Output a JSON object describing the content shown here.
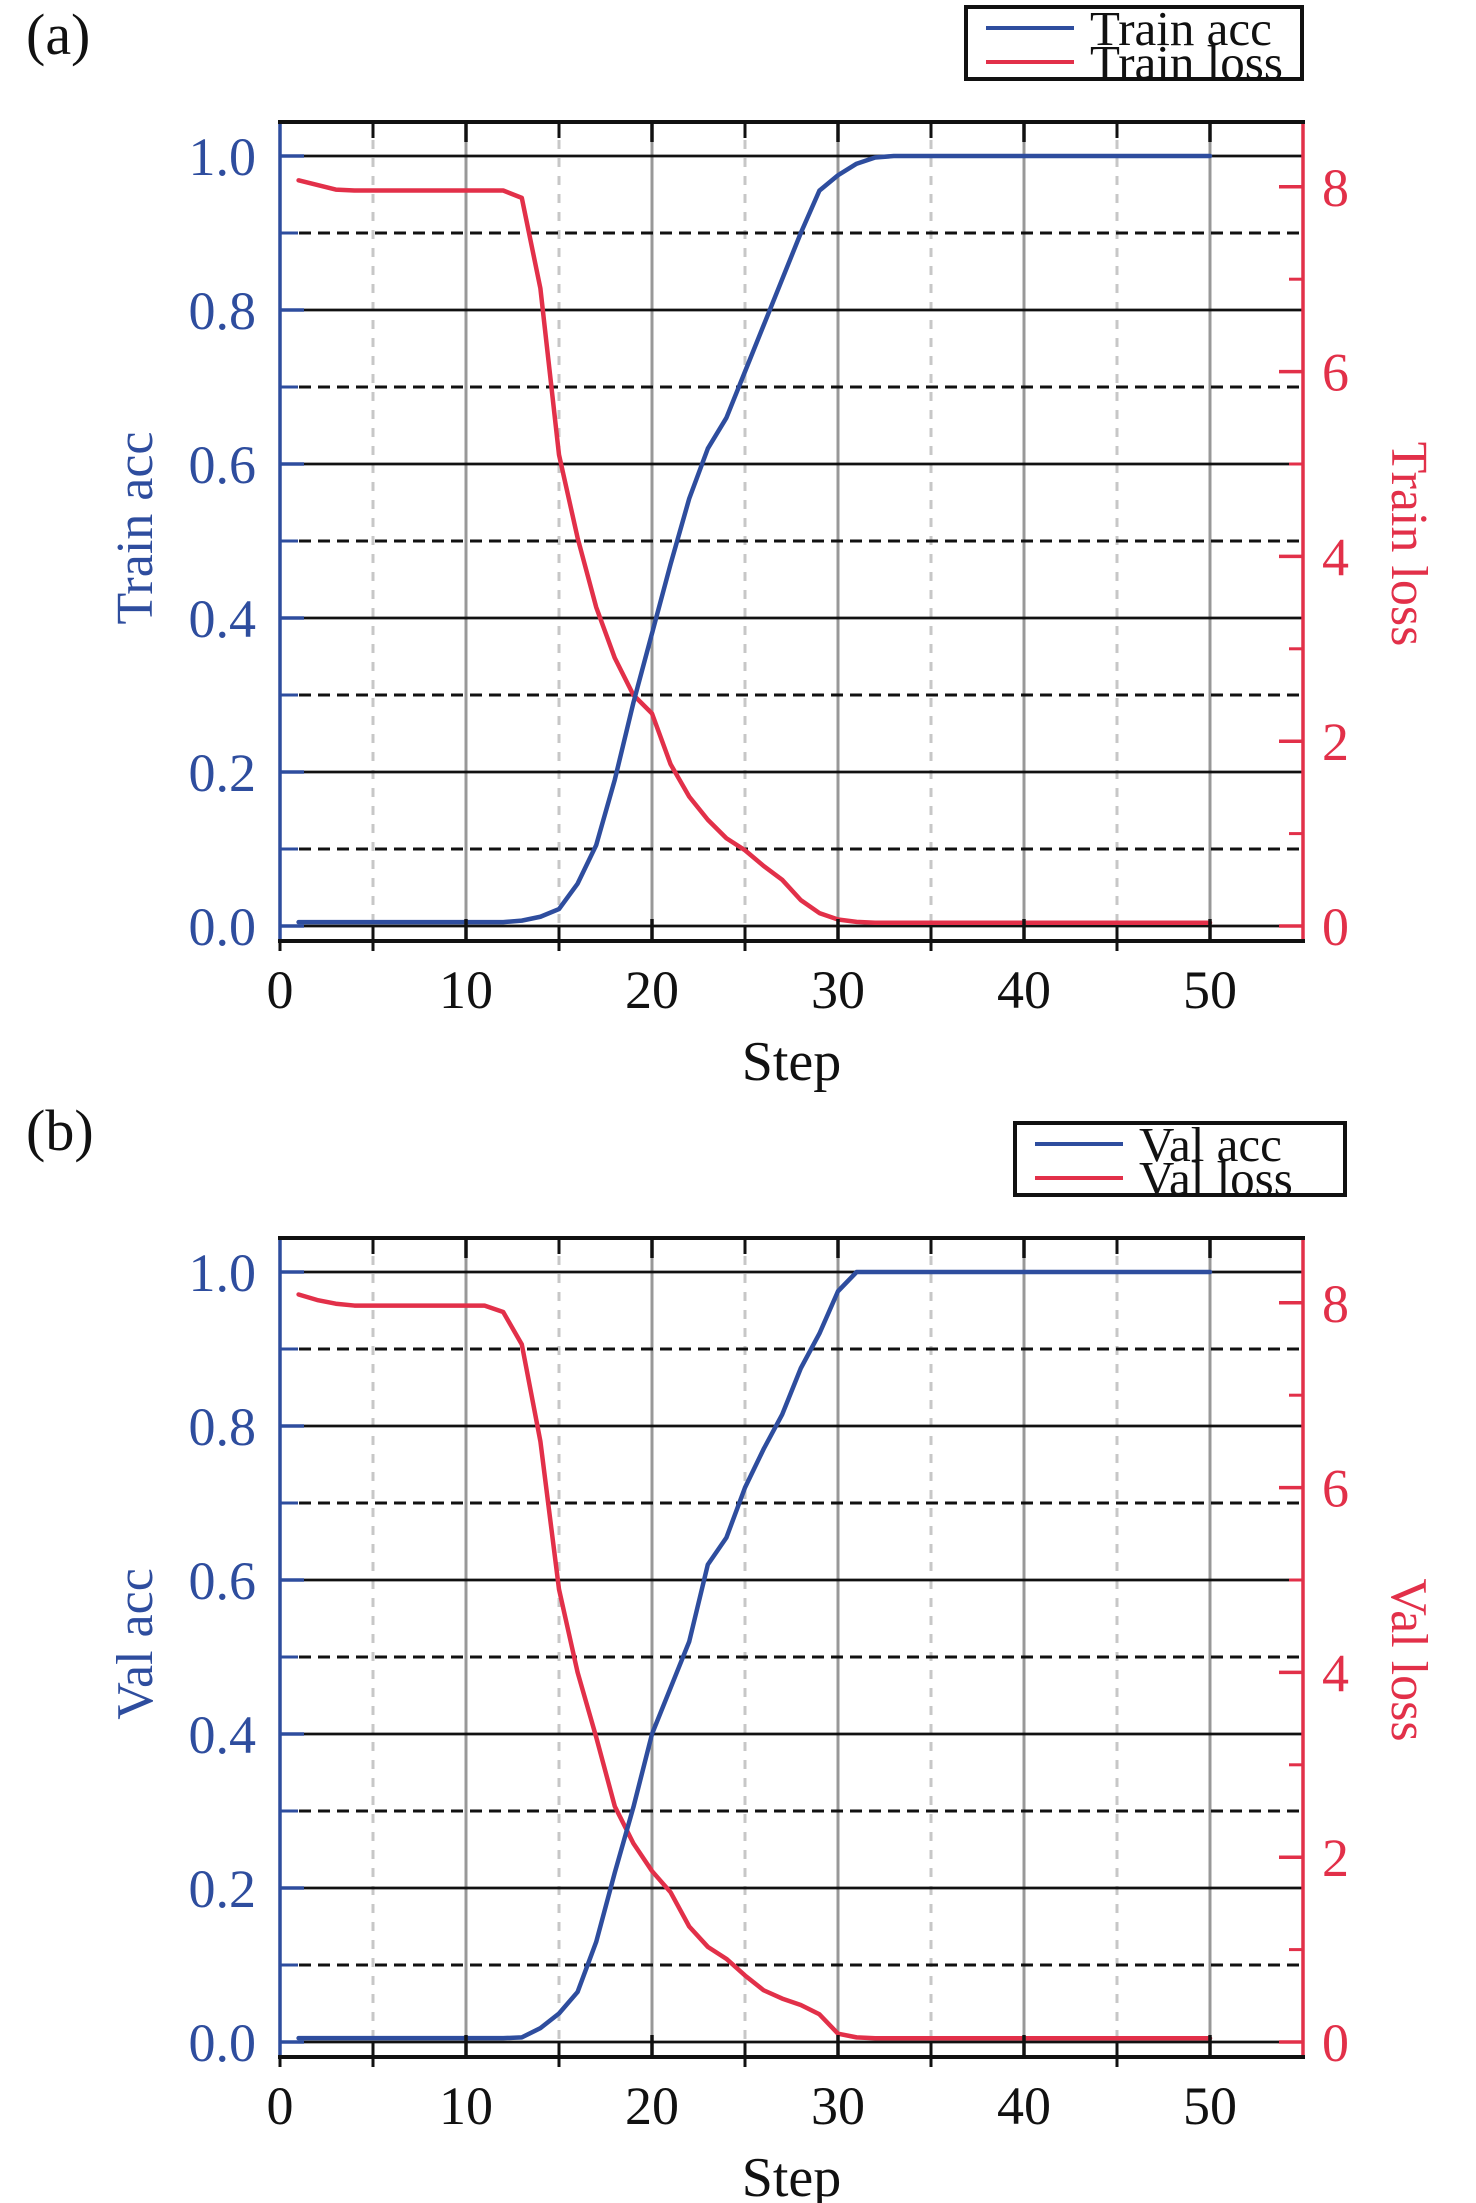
{
  "figure": {
    "background": "#ffffff"
  },
  "colors": {
    "acc_blue": "#2E4D9E",
    "loss_red": "#E23049",
    "grid_black": "#111111",
    "grid_gray_solid": "#989898",
    "grid_gray_dashed": "#c7c7c7",
    "text_black": "#111111"
  },
  "chart_data": [
    {
      "type": "line",
      "tag": "(a)",
      "xlabel": "Step",
      "legend": [
        {
          "label": "Train acc",
          "color": "#2E4D9E"
        },
        {
          "label": "Train loss",
          "color": "#E23049"
        }
      ],
      "x_axis": {
        "title": "Step",
        "tick_labels": [
          "0",
          "10",
          "20",
          "30",
          "40",
          "50"
        ],
        "tick_values": [
          0,
          10,
          20,
          30,
          40,
          50
        ],
        "minor_values": [
          5,
          15,
          25,
          35,
          45
        ],
        "range": [
          0,
          55
        ]
      },
      "left_axis": {
        "title": "Train acc",
        "color": "#2E4D9E",
        "tick_labels": [
          "0.0",
          "0.2",
          "0.4",
          "0.6",
          "0.8",
          "1.0"
        ],
        "tick_values": [
          0,
          0.2,
          0.4,
          0.6,
          0.8,
          1.0
        ],
        "minor_values": [
          0.1,
          0.3,
          0.5,
          0.7,
          0.9
        ],
        "range": [
          -0.02,
          1.045
        ]
      },
      "right_axis": {
        "title": "Train loss",
        "color": "#E23049",
        "tick_labels": [
          "0",
          "2",
          "4",
          "6",
          "8"
        ],
        "tick_values": [
          0,
          2,
          4,
          6,
          8
        ],
        "minor_values": [
          1,
          3,
          5,
          7
        ],
        "range": [
          -0.16,
          8.7
        ]
      },
      "series": [
        {
          "name": "Train loss",
          "axis": "right",
          "color": "#E23049",
          "x": [
            1,
            2,
            3,
            4,
            5,
            6,
            7,
            8,
            9,
            10,
            11,
            12,
            13,
            14,
            15,
            16,
            17,
            18,
            19,
            20,
            21,
            22,
            23,
            24,
            25,
            26,
            27,
            28,
            29,
            30,
            31,
            32,
            33,
            34,
            35,
            36,
            37,
            38,
            39,
            40,
            41,
            42,
            43,
            44,
            45,
            46,
            47,
            48,
            49,
            50
          ],
          "y": [
            8.07,
            8.02,
            7.97,
            7.96,
            7.96,
            7.96,
            7.96,
            7.96,
            7.96,
            7.96,
            7.96,
            7.96,
            7.88,
            6.9,
            5.1,
            4.2,
            3.45,
            2.9,
            2.5,
            2.3,
            1.75,
            1.4,
            1.15,
            0.95,
            0.82,
            0.65,
            0.5,
            0.28,
            0.14,
            0.07,
            0.045,
            0.035,
            0.035,
            0.035,
            0.035,
            0.035,
            0.035,
            0.035,
            0.035,
            0.035,
            0.035,
            0.035,
            0.035,
            0.035,
            0.035,
            0.035,
            0.035,
            0.035,
            0.035,
            0.035
          ]
        },
        {
          "name": "Train acc",
          "axis": "left",
          "color": "#2E4D9E",
          "x": [
            1,
            2,
            3,
            4,
            5,
            6,
            7,
            8,
            9,
            10,
            11,
            12,
            13,
            14,
            15,
            16,
            17,
            18,
            19,
            20,
            21,
            22,
            23,
            24,
            25,
            26,
            27,
            28,
            29,
            30,
            31,
            32,
            33,
            34,
            35,
            36,
            37,
            38,
            39,
            40,
            41,
            42,
            43,
            44,
            45,
            46,
            47,
            48,
            49,
            50
          ],
          "y": [
            0.005,
            0.005,
            0.005,
            0.005,
            0.005,
            0.005,
            0.005,
            0.005,
            0.005,
            0.005,
            0.005,
            0.005,
            0.007,
            0.012,
            0.022,
            0.055,
            0.105,
            0.19,
            0.29,
            0.38,
            0.47,
            0.555,
            0.62,
            0.66,
            0.72,
            0.78,
            0.84,
            0.9,
            0.955,
            0.975,
            0.99,
            0.998,
            1.0,
            1.0,
            1.0,
            1.0,
            1.0,
            1.0,
            1.0,
            1.0,
            1.0,
            1.0,
            1.0,
            1.0,
            1.0,
            1.0,
            1.0,
            1.0,
            1.0,
            1.0
          ]
        }
      ]
    },
    {
      "type": "line",
      "tag": "(b)",
      "xlabel": "Step",
      "legend": [
        {
          "label": "Val acc",
          "color": "#2E4D9E"
        },
        {
          "label": "Val loss",
          "color": "#E23049"
        }
      ],
      "x_axis": {
        "title": "Step",
        "tick_labels": [
          "0",
          "10",
          "20",
          "30",
          "40",
          "50"
        ],
        "tick_values": [
          0,
          10,
          20,
          30,
          40,
          50
        ],
        "minor_values": [
          5,
          15,
          25,
          35,
          45
        ],
        "range": [
          0,
          55
        ]
      },
      "left_axis": {
        "title": "Val acc",
        "color": "#2E4D9E",
        "tick_labels": [
          "0.0",
          "0.2",
          "0.4",
          "0.6",
          "0.8",
          "1.0"
        ],
        "tick_values": [
          0,
          0.2,
          0.4,
          0.6,
          0.8,
          1.0
        ],
        "minor_values": [
          0.1,
          0.3,
          0.5,
          0.7,
          0.9
        ],
        "range": [
          -0.02,
          1.045
        ]
      },
      "right_axis": {
        "title": "Val loss",
        "color": "#E23049",
        "tick_labels": [
          "0",
          "2",
          "4",
          "6",
          "8"
        ],
        "tick_values": [
          0,
          2,
          4,
          6,
          8
        ],
        "minor_values": [
          1,
          3,
          5,
          7
        ],
        "range": [
          -0.16,
          8.7
        ]
      },
      "series": [
        {
          "name": "Val loss",
          "axis": "right",
          "color": "#E23049",
          "x": [
            1,
            2,
            3,
            4,
            5,
            6,
            7,
            8,
            9,
            10,
            11,
            12,
            13,
            14,
            15,
            16,
            17,
            18,
            19,
            20,
            21,
            22,
            23,
            24,
            25,
            26,
            27,
            28,
            29,
            30,
            31,
            32,
            33,
            34,
            35,
            36,
            37,
            38,
            39,
            40,
            41,
            42,
            43,
            44,
            45,
            46,
            47,
            48,
            49,
            50
          ],
          "y": [
            8.09,
            8.03,
            7.99,
            7.97,
            7.97,
            7.97,
            7.97,
            7.97,
            7.97,
            7.97,
            7.97,
            7.9,
            7.55,
            6.5,
            4.9,
            4.0,
            3.3,
            2.55,
            2.15,
            1.85,
            1.62,
            1.25,
            1.03,
            0.9,
            0.72,
            0.56,
            0.47,
            0.4,
            0.3,
            0.09,
            0.05,
            0.04,
            0.04,
            0.04,
            0.04,
            0.04,
            0.04,
            0.04,
            0.04,
            0.04,
            0.04,
            0.04,
            0.04,
            0.04,
            0.04,
            0.04,
            0.04,
            0.04,
            0.04,
            0.04
          ]
        },
        {
          "name": "Val acc",
          "axis": "left",
          "color": "#2E4D9E",
          "x": [
            1,
            2,
            3,
            4,
            5,
            6,
            7,
            8,
            9,
            10,
            11,
            12,
            13,
            14,
            15,
            16,
            17,
            18,
            19,
            20,
            21,
            22,
            23,
            24,
            25,
            26,
            27,
            28,
            29,
            30,
            31,
            32,
            33,
            34,
            35,
            36,
            37,
            38,
            39,
            40,
            41,
            42,
            43,
            44,
            45,
            46,
            47,
            48,
            49,
            50
          ],
          "y": [
            0.005,
            0.005,
            0.005,
            0.005,
            0.005,
            0.005,
            0.005,
            0.005,
            0.005,
            0.005,
            0.005,
            0.005,
            0.006,
            0.018,
            0.037,
            0.065,
            0.13,
            0.22,
            0.305,
            0.4,
            0.46,
            0.52,
            0.62,
            0.655,
            0.72,
            0.77,
            0.815,
            0.875,
            0.92,
            0.975,
            1.0,
            1.0,
            1.0,
            1.0,
            1.0,
            1.0,
            1.0,
            1.0,
            1.0,
            1.0,
            1.0,
            1.0,
            1.0,
            1.0,
            1.0,
            1.0,
            1.0,
            1.0,
            1.0,
            1.0
          ]
        }
      ]
    }
  ]
}
